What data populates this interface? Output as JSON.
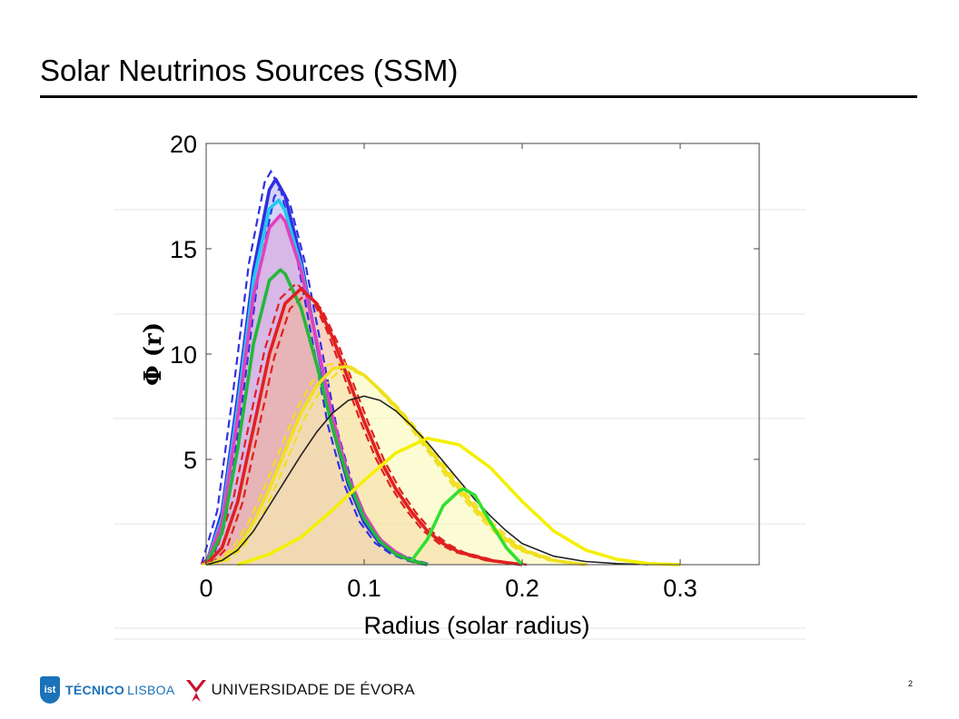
{
  "slide": {
    "title": "Solar Neutrinos Sources (SSM)",
    "page_number": "2"
  },
  "footer": {
    "tecnico_mark": "ist",
    "tecnico_bold": "TÉCNICO",
    "tecnico_light": "LISBOA",
    "evora_name": "UNIVERSIDADE DE ÉVORA",
    "tecnico_color": "#1b72b8",
    "evora_color": "#c8102e",
    "icons": [
      "tecnico-shield-icon",
      "evora-emblem-icon"
    ]
  },
  "chart_data": {
    "type": "area",
    "title": "",
    "xlabel": "Radius (solar radius)",
    "ylabel": "Φ (r)",
    "xlim": [
      0,
      0.35
    ],
    "ylim": [
      0,
      20
    ],
    "xticks": [
      0,
      0.1,
      0.2,
      0.3
    ],
    "xtick_labels": [
      "0",
      "0.1",
      "0.2",
      "0.3"
    ],
    "yticks": [
      5,
      10,
      15,
      20
    ],
    "ytick_labels": [
      "5",
      "10",
      "15",
      "20"
    ],
    "grid": false,
    "legend": "none",
    "series": [
      {
        "color": "#3030e0",
        "fill": "#b0b0f0",
        "dashed_band": true,
        "peak_x": 0.044,
        "peak_y": 18.3,
        "x": [
          0,
          0.01,
          0.02,
          0.03,
          0.04,
          0.044,
          0.05,
          0.06,
          0.07,
          0.08,
          0.09,
          0.1,
          0.11,
          0.12,
          0.13,
          0.14
        ],
        "y": [
          0,
          2.5,
          8,
          14,
          17.8,
          18.3,
          17.5,
          14.5,
          10.5,
          6.5,
          3.8,
          2.0,
          1.0,
          0.5,
          0.2,
          0
        ]
      },
      {
        "color": "#22c8f0",
        "fill": "none",
        "dashed_band": false,
        "peak_x": 0.046,
        "peak_y": 17.3,
        "x": [
          0,
          0.01,
          0.02,
          0.03,
          0.04,
          0.046,
          0.05,
          0.06,
          0.07,
          0.08,
          0.09,
          0.1,
          0.11,
          0.12,
          0.13,
          0.14
        ],
        "y": [
          0,
          2.2,
          7.5,
          13.5,
          16.9,
          17.3,
          16.8,
          14.2,
          10.6,
          6.8,
          4.0,
          2.2,
          1.1,
          0.5,
          0.2,
          0
        ]
      },
      {
        "color": "#e040c0",
        "fill": "#d8a0d8",
        "dashed_band": false,
        "peak_x": 0.047,
        "peak_y": 16.6,
        "x": [
          0,
          0.01,
          0.02,
          0.03,
          0.04,
          0.047,
          0.05,
          0.06,
          0.07,
          0.08,
          0.09,
          0.1,
          0.11,
          0.12,
          0.13,
          0.14
        ],
        "y": [
          0,
          2.0,
          7.0,
          12.8,
          16.0,
          16.6,
          16.3,
          14.0,
          10.6,
          7.0,
          4.2,
          2.4,
          1.2,
          0.6,
          0.2,
          0
        ]
      },
      {
        "color": "#22b83a",
        "fill": "none",
        "dashed_band": false,
        "peak_x": 0.047,
        "peak_y": 14.0,
        "x": [
          0,
          0.01,
          0.02,
          0.03,
          0.04,
          0.047,
          0.05,
          0.06,
          0.07,
          0.08,
          0.09,
          0.1,
          0.11,
          0.12,
          0.13,
          0.14
        ],
        "y": [
          0,
          1.5,
          5.5,
          10.5,
          13.5,
          14.0,
          13.8,
          12.2,
          9.5,
          6.5,
          4.0,
          2.2,
          1.1,
          0.5,
          0.2,
          0
        ]
      },
      {
        "color": "#e02020",
        "fill": "#f4b090",
        "dashed_band": true,
        "peak_x": 0.06,
        "peak_y": 13.1,
        "x": [
          0,
          0.01,
          0.02,
          0.03,
          0.04,
          0.05,
          0.06,
          0.07,
          0.08,
          0.09,
          0.1,
          0.11,
          0.12,
          0.13,
          0.14,
          0.15,
          0.16,
          0.18,
          0.2
        ],
        "y": [
          0,
          0.8,
          3.0,
          6.5,
          10.0,
          12.4,
          13.1,
          12.4,
          10.8,
          8.8,
          6.8,
          5.0,
          3.6,
          2.5,
          1.6,
          1.0,
          0.6,
          0.2,
          0
        ]
      },
      {
        "color": "#f0e020",
        "fill": "#fafab0",
        "dashed_band": true,
        "peak_x": 0.088,
        "peak_y": 9.4,
        "x": [
          0,
          0.01,
          0.02,
          0.03,
          0.04,
          0.05,
          0.06,
          0.07,
          0.08,
          0.088,
          0.09,
          0.1,
          0.11,
          0.12,
          0.13,
          0.14,
          0.15,
          0.16,
          0.17,
          0.18,
          0.19,
          0.2,
          0.22,
          0.24
        ],
        "y": [
          0,
          0.2,
          0.8,
          2.0,
          3.6,
          5.4,
          7.2,
          8.5,
          9.3,
          9.4,
          9.4,
          9.0,
          8.3,
          7.5,
          6.6,
          5.6,
          4.6,
          3.6,
          2.7,
          1.9,
          1.2,
          0.7,
          0.2,
          0
        ]
      },
      {
        "color": "#222222",
        "fill": "none",
        "dashed_band": false,
        "peak_x": 0.1,
        "peak_y": 8.0,
        "x": [
          0,
          0.01,
          0.02,
          0.03,
          0.04,
          0.05,
          0.06,
          0.07,
          0.08,
          0.09,
          0.1,
          0.11,
          0.12,
          0.13,
          0.14,
          0.15,
          0.16,
          0.17,
          0.18,
          0.19,
          0.2,
          0.22,
          0.24,
          0.26,
          0.28
        ],
        "y": [
          0,
          0.2,
          0.7,
          1.6,
          2.8,
          4.0,
          5.2,
          6.3,
          7.2,
          7.8,
          8.0,
          7.8,
          7.3,
          6.6,
          5.8,
          4.9,
          4.0,
          3.1,
          2.3,
          1.6,
          1.0,
          0.4,
          0.15,
          0.05,
          0
        ]
      },
      {
        "color": "#f4f000",
        "fill": "none",
        "dashed_band": false,
        "peak_x": 0.14,
        "peak_y": 6.0,
        "x": [
          0.02,
          0.04,
          0.06,
          0.08,
          0.1,
          0.12,
          0.14,
          0.16,
          0.18,
          0.2,
          0.22,
          0.24,
          0.26,
          0.28,
          0.3
        ],
        "y": [
          0,
          0.5,
          1.3,
          2.6,
          4.0,
          5.3,
          6.0,
          5.7,
          4.6,
          3.0,
          1.6,
          0.7,
          0.25,
          0.05,
          0
        ]
      },
      {
        "color": "#30e030",
        "fill": "none",
        "dashed_band": false,
        "peak_x": 0.163,
        "peak_y": 3.6,
        "x": [
          0.13,
          0.14,
          0.15,
          0.16,
          0.163,
          0.17,
          0.18,
          0.19,
          0.2
        ],
        "y": [
          0.2,
          1.2,
          2.8,
          3.5,
          3.6,
          3.3,
          2.0,
          0.8,
          0
        ]
      }
    ]
  }
}
